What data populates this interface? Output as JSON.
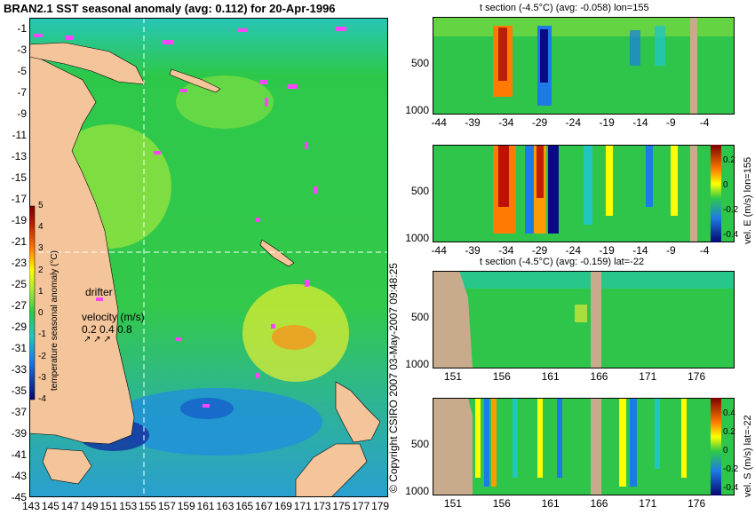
{
  "title": "BRAN2.1 SST seasonal anomaly (avg: 0.112) for 20-Apr-1996",
  "copyright": "© Copyright CSIRO 2007  03-May-2007 09:48:25",
  "colors": {
    "land": "#f4c49a",
    "ocean": "#2fc54a",
    "section_land": "#c8aa8c",
    "crosshair": "#ffffff",
    "drifter": "#ff44ff"
  },
  "chart_data": [
    {
      "type": "heatmap",
      "panel": "map",
      "title": "BRAN2.1 SST seasonal anomaly (avg: 0.112) for 20-Apr-1996",
      "x_ticks": [
        "143",
        "145",
        "147",
        "149",
        "151",
        "153",
        "155",
        "157",
        "159",
        "161",
        "163",
        "165",
        "167",
        "169",
        "171",
        "173",
        "175",
        "177",
        "179"
      ],
      "y_ticks": [
        "-1",
        "-3",
        "-5",
        "-7",
        "-9",
        "-11",
        "-13",
        "-15",
        "-17",
        "-19",
        "-21",
        "-23",
        "-25",
        "-27",
        "-29",
        "-31",
        "-33",
        "-35",
        "-37",
        "-39",
        "-41",
        "-43",
        "-45"
      ],
      "xlim": [
        143,
        180
      ],
      "ylim": [
        -45,
        0
      ],
      "crosshair": {
        "lon": 155,
        "lat": -22
      },
      "colorbar": {
        "label": "temperature seasonal anomaly (°C)",
        "ticks": [
          "5",
          "4",
          "3",
          "2",
          "1",
          "0",
          "-1",
          "-2",
          "-3",
          "-4"
        ],
        "range": [
          -4,
          5
        ]
      },
      "legend": {
        "drifter_label": "drifter",
        "velocity_label": "velocity (m/s)",
        "velocity_values": "0.2 0.4 0.8"
      }
    },
    {
      "type": "heatmap",
      "panel": "t-section-lon",
      "title": "t section (-4.5°C) (avg: -0.058) lon=155",
      "x_ticks": [
        "-44",
        "-39",
        "-34",
        "-29",
        "-24",
        "-19",
        "-14",
        "-9",
        "-4"
      ],
      "y_ticks": [
        "500",
        "1000"
      ],
      "xlim": [
        -45,
        0
      ],
      "ylim": [
        1050,
        0
      ]
    },
    {
      "type": "heatmap",
      "panel": "vel-e-section",
      "colorbar_label": "vel. E (m/s) lon=155",
      "colorbar_ticks": [
        "0.2",
        "0",
        "-0.2",
        "-0.4"
      ],
      "x_ticks": [
        "-44",
        "-39",
        "-34",
        "-29",
        "-24",
        "-19",
        "-14",
        "-9",
        "-4"
      ],
      "y_ticks": [
        "500",
        "1000"
      ],
      "xlim": [
        -45,
        0
      ],
      "ylim": [
        1050,
        0
      ]
    },
    {
      "type": "heatmap",
      "panel": "t-section-lat",
      "title": "t section (-4.5°C) (avg: -0.159) lat=-22",
      "x_ticks": [
        "151",
        "156",
        "161",
        "166",
        "171",
        "176"
      ],
      "y_ticks": [
        "500",
        "1000"
      ],
      "xlim": [
        149,
        180
      ],
      "ylim": [
        1050,
        0
      ]
    },
    {
      "type": "heatmap",
      "panel": "vel-s-section",
      "colorbar_label": "vel. S (m/s) lat=-22",
      "colorbar_ticks": [
        "0.4",
        "0.2",
        "0",
        "-0.2",
        "-0.4"
      ],
      "x_ticks": [
        "151",
        "156",
        "161",
        "166",
        "171",
        "176"
      ],
      "y_ticks": [
        "500",
        "1000"
      ],
      "xlim": [
        149,
        180
      ],
      "ylim": [
        1050,
        0
      ]
    }
  ]
}
